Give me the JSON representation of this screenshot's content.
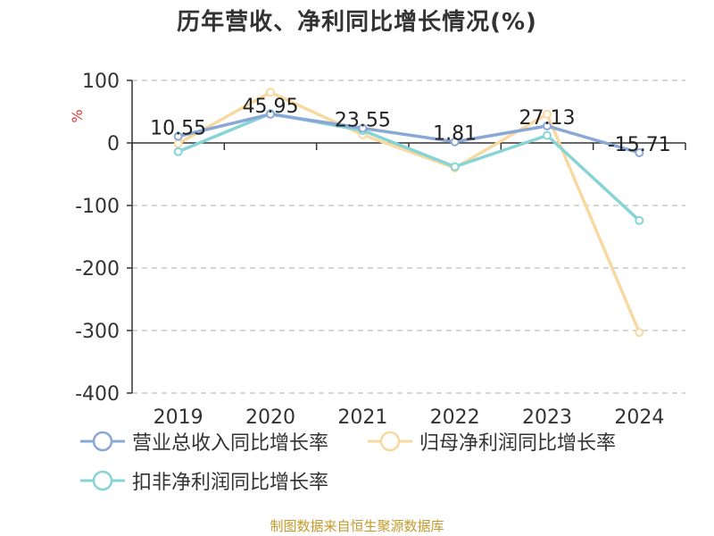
{
  "chart_data": {
    "type": "line",
    "title": "历年营收、净利同比增长情况(%)",
    "ylabel": "%",
    "categories": [
      "2019",
      "2020",
      "2021",
      "2022",
      "2023",
      "2024"
    ],
    "ylim": [
      -400,
      100
    ],
    "yticks": [
      100,
      0,
      -100,
      -200,
      -300,
      -400
    ],
    "grid": true,
    "legend_position": "bottom-left",
    "series": [
      {
        "name": "营业总收入同比增长率",
        "color": "#8aa8d6",
        "values": [
          10.55,
          45.95,
          23.55,
          1.81,
          27.13,
          -15.71
        ],
        "labels": [
          "10.55",
          "45.95",
          "23.55",
          "1.81",
          "27.13",
          "-15.71"
        ]
      },
      {
        "name": "归母净利润同比增长率",
        "color": "#f7d9a1",
        "values": [
          -1,
          81,
          13,
          -40,
          46,
          -303
        ]
      },
      {
        "name": "扣非净利润同比增长率",
        "color": "#86d4d6",
        "values": [
          -14,
          47,
          20,
          -38,
          12,
          -124
        ]
      }
    ]
  },
  "source": "制图数据来自恒生聚源数据库"
}
